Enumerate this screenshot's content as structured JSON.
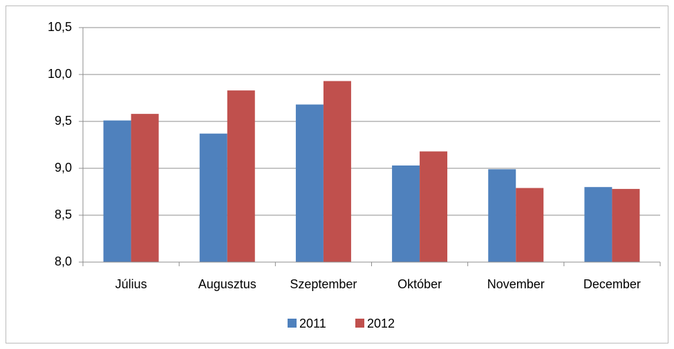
{
  "chart_data": {
    "type": "bar",
    "categories": [
      "Július",
      "Augusztus",
      "Szeptember",
      "Október",
      "November",
      "December"
    ],
    "series": [
      {
        "name": "2011",
        "color": "#4f81bd",
        "values": [
          9.51,
          9.37,
          9.68,
          9.03,
          8.99,
          8.8
        ]
      },
      {
        "name": "2012",
        "color": "#c0504d",
        "values": [
          9.58,
          9.83,
          9.93,
          9.18,
          8.79,
          8.78
        ]
      }
    ],
    "ylim": [
      8.0,
      10.5
    ],
    "yticks": [
      {
        "value": 8.0,
        "label": "8,0"
      },
      {
        "value": 8.5,
        "label": "8,5"
      },
      {
        "value": 9.0,
        "label": "9,0"
      },
      {
        "value": 9.5,
        "label": "9,5"
      },
      {
        "value": 10.0,
        "label": "10,0"
      },
      {
        "value": 10.5,
        "label": "10,5"
      }
    ],
    "grid": true,
    "legend": "bottom"
  }
}
